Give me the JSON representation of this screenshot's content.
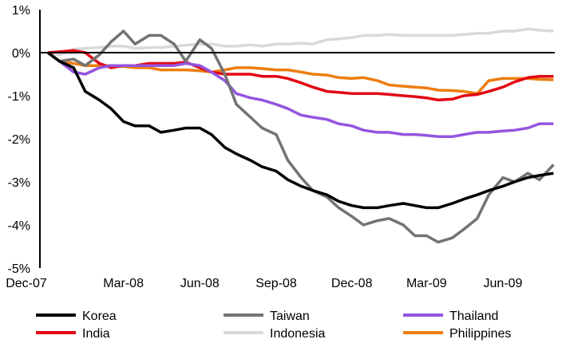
{
  "chart_data": {
    "type": "line",
    "title": "",
    "xlabel": "",
    "ylabel": "",
    "ylim": [
      -5,
      1
    ],
    "yticks": [
      1,
      0,
      -1,
      -2,
      -3,
      -4,
      -5
    ],
    "ytick_labels": [
      "1%",
      "0%",
      "-1%",
      "-2%",
      "-3%",
      "-4%",
      "-5%"
    ],
    "xticks": [
      "2007-12-01",
      "2008-03-01",
      "2008-06-01",
      "2008-09-01",
      "2008-12-01",
      "2009-03-01",
      "2009-06-01"
    ],
    "xtick_labels": [
      "Dec-07",
      "Mar-08",
      "Jun-08",
      "Sep-08",
      "Dec-08",
      "Mar-09",
      "Jun-09"
    ],
    "xlim": [
      "2007-11-22",
      "2009-08-01"
    ],
    "grid": false,
    "legend_placement": "bottom",
    "x": [
      "2007-12-01",
      "2007-12-15",
      "2008-01-01",
      "2008-01-15",
      "2008-02-01",
      "2008-02-15",
      "2008-03-01",
      "2008-03-15",
      "2008-04-01",
      "2008-04-15",
      "2008-05-01",
      "2008-05-15",
      "2008-06-01",
      "2008-06-15",
      "2008-07-01",
      "2008-07-15",
      "2008-08-01",
      "2008-08-15",
      "2008-09-01",
      "2008-09-15",
      "2008-10-01",
      "2008-10-15",
      "2008-11-01",
      "2008-11-15",
      "2008-12-01",
      "2008-12-15",
      "2009-01-01",
      "2009-01-15",
      "2009-02-01",
      "2009-02-15",
      "2009-03-01",
      "2009-03-15",
      "2009-04-01",
      "2009-04-15",
      "2009-05-01",
      "2009-05-15",
      "2009-06-01",
      "2009-06-15",
      "2009-07-01",
      "2009-07-15",
      "2009-08-01"
    ],
    "series": [
      {
        "name": "Korea",
        "color": "#000000",
        "values": [
          0,
          -0.2,
          -0.35,
          -0.9,
          -1.1,
          -1.3,
          -1.6,
          -1.7,
          -1.7,
          -1.85,
          -1.8,
          -1.75,
          -1.75,
          -1.9,
          -2.2,
          -2.35,
          -2.5,
          -2.65,
          -2.75,
          -2.95,
          -3.1,
          -3.2,
          -3.3,
          -3.45,
          -3.55,
          -3.6,
          -3.6,
          -3.55,
          -3.5,
          -3.55,
          -3.6,
          -3.6,
          -3.5,
          -3.4,
          -3.3,
          -3.2,
          -3.1,
          -3.0,
          -2.9,
          -2.85,
          -2.8
        ]
      },
      {
        "name": "Taiwan",
        "color": "#737373",
        "values": [
          0,
          -0.2,
          -0.15,
          -0.3,
          -0.05,
          0.25,
          0.5,
          0.2,
          0.4,
          0.4,
          0.2,
          -0.2,
          0.3,
          0.1,
          -0.5,
          -1.2,
          -1.5,
          -1.75,
          -1.9,
          -2.5,
          -2.9,
          -3.2,
          -3.35,
          -3.6,
          -3.8,
          -4.0,
          -3.9,
          -3.85,
          -4.0,
          -4.25,
          -4.25,
          -4.4,
          -4.3,
          -4.1,
          -3.85,
          -3.3,
          -2.9,
          -3.0,
          -2.8,
          -2.95,
          -2.6
        ]
      },
      {
        "name": "Thailand",
        "color": "#9455e0",
        "values": [
          0,
          -0.2,
          -0.45,
          -0.5,
          -0.35,
          -0.3,
          -0.3,
          -0.3,
          -0.3,
          -0.3,
          -0.3,
          -0.25,
          -0.3,
          -0.45,
          -0.65,
          -0.95,
          -1.05,
          -1.1,
          -1.2,
          -1.3,
          -1.45,
          -1.5,
          -1.55,
          -1.65,
          -1.7,
          -1.8,
          -1.85,
          -1.85,
          -1.9,
          -1.9,
          -1.92,
          -1.95,
          -1.95,
          -1.9,
          -1.85,
          -1.85,
          -1.82,
          -1.8,
          -1.75,
          -1.65,
          -1.65
        ]
      },
      {
        "name": "India",
        "color": "#e30613",
        "values": [
          0,
          0.02,
          0.05,
          0,
          -0.25,
          -0.35,
          -0.3,
          -0.3,
          -0.25,
          -0.25,
          -0.25,
          -0.22,
          -0.35,
          -0.45,
          -0.5,
          -0.5,
          -0.5,
          -0.55,
          -0.55,
          -0.6,
          -0.7,
          -0.8,
          -0.9,
          -0.92,
          -0.95,
          -0.95,
          -0.95,
          -0.97,
          -1.0,
          -1.02,
          -1.05,
          -1.1,
          -1.08,
          -1.0,
          -0.97,
          -0.9,
          -0.8,
          -0.68,
          -0.58,
          -0.55,
          -0.55
        ]
      },
      {
        "name": "Indonesia",
        "color": "#d9d9d9",
        "values": [
          0,
          -0.05,
          0.08,
          0.1,
          0.12,
          0.15,
          0.15,
          0.1,
          0.12,
          0.12,
          0.15,
          0.17,
          0.2,
          0.2,
          0.15,
          0.15,
          0.18,
          0.15,
          0.2,
          0.2,
          0.22,
          0.2,
          0.3,
          0.32,
          0.35,
          0.4,
          0.4,
          0.42,
          0.4,
          0.4,
          0.4,
          0.4,
          0.4,
          0.42,
          0.45,
          0.45,
          0.5,
          0.5,
          0.55,
          0.52,
          0.5
        ]
      },
      {
        "name": "Philippines",
        "color": "#ed7d0e",
        "values": [
          0,
          -0.2,
          -0.25,
          -0.3,
          -0.3,
          -0.3,
          -0.32,
          -0.35,
          -0.35,
          -0.4,
          -0.4,
          -0.4,
          -0.42,
          -0.45,
          -0.4,
          -0.35,
          -0.35,
          -0.37,
          -0.4,
          -0.4,
          -0.45,
          -0.5,
          -0.52,
          -0.58,
          -0.6,
          -0.58,
          -0.65,
          -0.75,
          -0.78,
          -0.8,
          -0.82,
          -0.87,
          -0.88,
          -0.9,
          -0.95,
          -0.65,
          -0.6,
          -0.6,
          -0.6,
          -0.62,
          -0.63
        ]
      }
    ]
  }
}
